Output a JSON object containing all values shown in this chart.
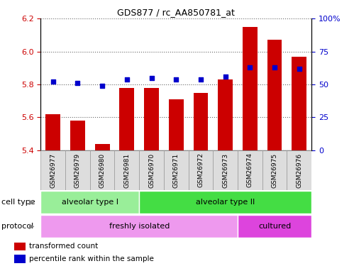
{
  "title": "GDS877 / rc_AA850781_at",
  "samples": [
    "GSM26977",
    "GSM26979",
    "GSM26980",
    "GSM26981",
    "GSM26970",
    "GSM26971",
    "GSM26972",
    "GSM26973",
    "GSM26974",
    "GSM26975",
    "GSM26976"
  ],
  "transformed_count": [
    5.62,
    5.58,
    5.44,
    5.78,
    5.78,
    5.71,
    5.75,
    5.83,
    6.15,
    6.07,
    5.97
  ],
  "percentile_rank": [
    52,
    51,
    49,
    54,
    55,
    54,
    54,
    56,
    63,
    63,
    62
  ],
  "ylim_left": [
    5.4,
    6.2
  ],
  "ylim_right": [
    0,
    100
  ],
  "yticks_left": [
    5.4,
    5.6,
    5.8,
    6.0,
    6.2
  ],
  "yticks_right": [
    0,
    25,
    50,
    75,
    100
  ],
  "ytick_labels_right": [
    "0",
    "25",
    "50",
    "75",
    "100%"
  ],
  "bar_color": "#cc0000",
  "dot_color": "#0000cc",
  "cell_type_labels": [
    {
      "label": "alveolar type I",
      "start": 0,
      "end": 4,
      "color": "#99ee99"
    },
    {
      "label": "alveolar type II",
      "start": 4,
      "end": 11,
      "color": "#44dd44"
    }
  ],
  "protocol_labels": [
    {
      "label": "freshly isolated",
      "start": 0,
      "end": 8,
      "color": "#ee99ee"
    },
    {
      "label": "cultured",
      "start": 8,
      "end": 11,
      "color": "#dd44dd"
    }
  ],
  "grid_color": "#000000",
  "grid_linestyle": "dotted",
  "legend_items": [
    {
      "label": "transformed count",
      "color": "#cc0000"
    },
    {
      "label": "percentile rank within the sample",
      "color": "#0000cc"
    }
  ],
  "tick_label_color_left": "#cc0000",
  "tick_label_color_right": "#0000cc",
  "annotation_cell_type": "cell type",
  "annotation_protocol": "protocol",
  "xtick_bg_color": "#dddddd",
  "xtick_border_color": "#999999"
}
